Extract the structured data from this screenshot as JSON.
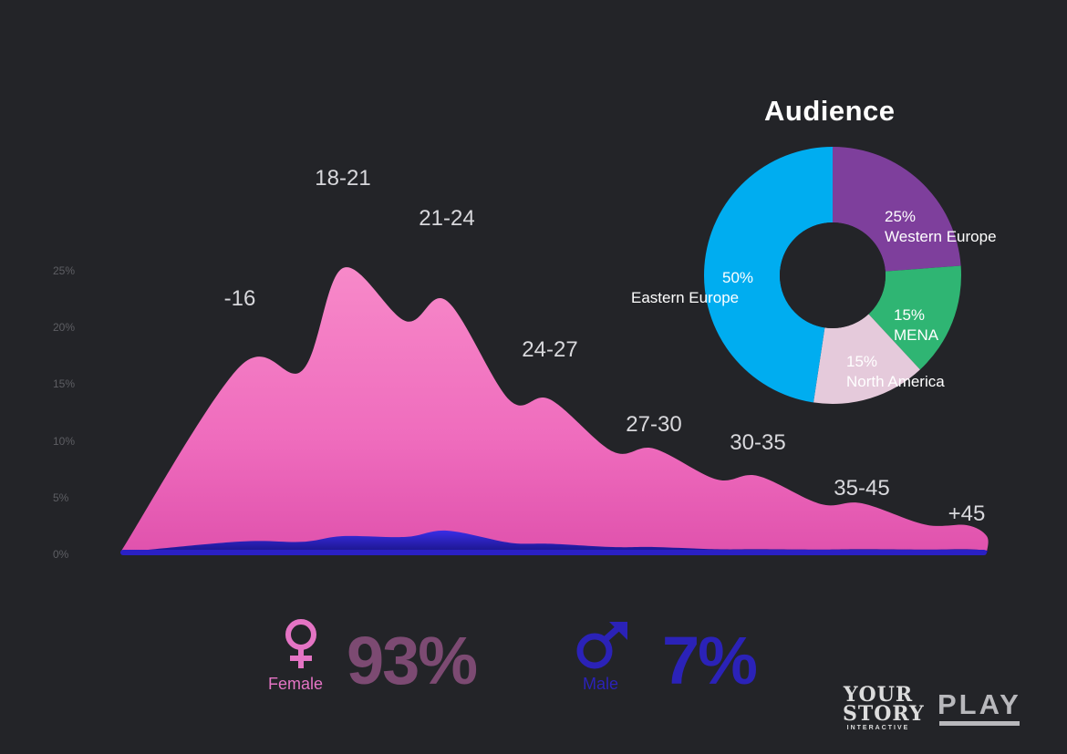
{
  "chart_data": [
    {
      "type": "area",
      "title": "",
      "xlabel": "",
      "ylabel": "",
      "ylim": [
        0,
        25
      ],
      "y_ticks": [
        "0%",
        "5%",
        "10%",
        "15%",
        "20%",
        "25%"
      ],
      "categories": [
        "-16",
        "18-21",
        "21-24",
        "24-27",
        "27-30",
        "30-35",
        "35-45",
        "+45"
      ],
      "series": [
        {
          "values": [
            17,
            26,
            23,
            14,
            9.5,
            7,
            4.5,
            2.5
          ],
          "color": "#f070c0"
        },
        {
          "values": [
            1,
            1.5,
            2,
            0.8,
            0.5,
            0.3,
            0.3,
            0.3
          ],
          "color": "#2c22c8"
        }
      ],
      "grid": false,
      "legend": "none"
    },
    {
      "type": "pie",
      "style": "donut",
      "title": "Audience",
      "slices": [
        {
          "pct_label": "25%",
          "label": "Western Europe",
          "value": 25,
          "color": "#7e3f9c"
        },
        {
          "pct_label": "15%",
          "label": "MENA",
          "value": 15,
          "color": "#2fb573"
        },
        {
          "pct_label": "15%",
          "label": "North America",
          "value": 15,
          "color": "#e5cadb"
        },
        {
          "pct_label": "50%",
          "label": "Eastern Europe",
          "value": 50,
          "color": "#00adf0"
        }
      ]
    }
  ],
  "gender": {
    "female": {
      "label": "Female",
      "value": "93%",
      "icon": "female-icon",
      "label_color": "#e474c4",
      "value_color": "#7c4a72"
    },
    "male": {
      "label": "Male",
      "value": "7%",
      "icon": "male-icon",
      "label_color": "#2b22b8",
      "value_color": "#2b22b8"
    }
  },
  "branding": {
    "logo1_line1": "YOUR",
    "logo1_line2": "STORY",
    "logo1_sub": "INTERACTIVE",
    "logo2": "PLAY"
  }
}
